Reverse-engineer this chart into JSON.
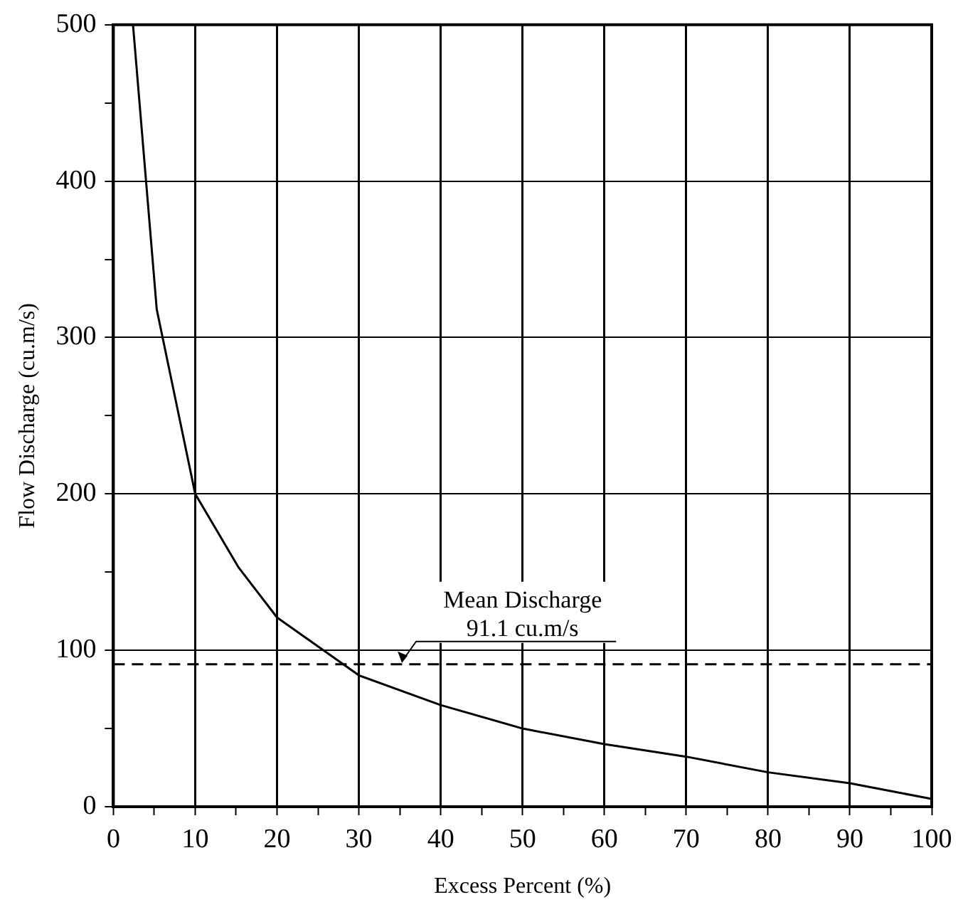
{
  "chart_data": {
    "type": "line",
    "xlabel": "Excess Percent (%)",
    "ylabel": "Flow Discharge (cu.m/s)",
    "series": [
      {
        "color": "#000000",
        "x": [
          2.4,
          5.3,
          10,
          15.3,
          20,
          30,
          40,
          50,
          60,
          70,
          80,
          90,
          95,
          100
        ],
        "values": [
          500,
          318,
          200,
          153,
          121,
          84,
          65,
          50,
          40,
          32,
          22,
          15,
          10,
          5
        ]
      }
    ],
    "xlim": [
      0,
      100
    ],
    "xticks": [
      0,
      {
        "value": 5,
        "label": null
      },
      10,
      {
        "value": 15,
        "label": null
      },
      20,
      {
        "value": 25,
        "label": null
      },
      30,
      {
        "value": 35,
        "label": null
      },
      40,
      {
        "value": 45,
        "label": null
      },
      50,
      {
        "value": 55,
        "label": null
      },
      60,
      {
        "value": 65,
        "label": null
      },
      70,
      {
        "value": 75,
        "label": null
      },
      80,
      {
        "value": 85,
        "label": null
      },
      90,
      {
        "value": 95,
        "label": null
      },
      100
    ],
    "ylim": [
      0,
      500
    ],
    "yticks": [
      0,
      {
        "value": 50,
        "label": null
      },
      100,
      {
        "value": 150,
        "label": null
      },
      200,
      {
        "value": 250,
        "label": null
      },
      300,
      {
        "value": 350,
        "label": null
      },
      400,
      {
        "value": 450,
        "label": null
      },
      500
    ],
    "grid": true,
    "legend": false,
    "marker": "none",
    "line_style": "solid",
    "ref_lines": [
      {
        "axis": "y",
        "value": 91.1,
        "label": "Mean Discharge\n91.1 cu.m/s",
        "color": "#000000",
        "line_style": "dashed"
      }
    ]
  }
}
